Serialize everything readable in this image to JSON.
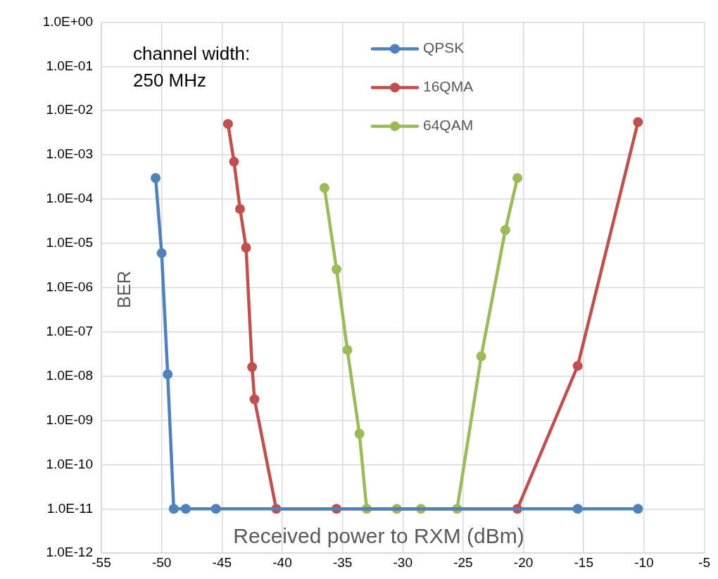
{
  "chart_data": {
    "type": "line",
    "xlabel": "Received power to RXM (dBm)",
    "ylabel": "BER",
    "annotations": [
      "channel width:",
      "250 MHz"
    ],
    "log": "y",
    "grid": true,
    "legend": "top",
    "marker": "circle",
    "line_style": "solid",
    "xlim": [
      -55,
      -5
    ],
    "xticks": [
      -55,
      -50,
      -45,
      -40,
      -35,
      -30,
      -25,
      -20,
      -15,
      -10,
      -5
    ],
    "ylim": [
      1e-12,
      1
    ],
    "yticks": [
      {
        "value": 1e-12,
        "label": "1.0E-12"
      },
      {
        "value": 1e-11,
        "label": "1.0E-11"
      },
      {
        "value": 1e-10,
        "label": "1.0E-10"
      },
      {
        "value": 1e-09,
        "label": "1.0E-09"
      },
      {
        "value": 1e-08,
        "label": "1.0E-08"
      },
      {
        "value": 1e-07,
        "label": "1.0E-07"
      },
      {
        "value": 1e-06,
        "label": "1.0E-06"
      },
      {
        "value": 1e-05,
        "label": "1.0E-05"
      },
      {
        "value": 0.0001,
        "label": "1.0E-04"
      },
      {
        "value": 0.001,
        "label": "1.0E-03"
      },
      {
        "value": 0.01,
        "label": "1.0E-02"
      },
      {
        "value": 0.1,
        "label": "1.0E-01"
      },
      {
        "value": 1,
        "label": "1.0E+00"
      }
    ],
    "series": [
      {
        "name": "QPSK",
        "color": "#4f81bd",
        "x": [
          -50.5,
          -50,
          -49.5,
          -49,
          -48,
          -45.5,
          -15.5,
          -10.5
        ],
        "values": [
          0.0003,
          6e-06,
          1.1e-08,
          1e-11,
          1e-11,
          1e-11,
          1e-11,
          1e-11
        ]
      },
      {
        "name": "16QMA",
        "color": "#c0504d",
        "x": [
          -44.5,
          -44,
          -43.5,
          -43,
          -42.5,
          -42.3,
          -40.5,
          -35.5,
          -20.5,
          -15.5,
          -10.5
        ],
        "values": [
          0.005,
          0.0007,
          6e-05,
          8e-06,
          1.6e-08,
          3e-09,
          1e-11,
          1e-11,
          1e-11,
          1.7e-08,
          0.0055
        ]
      },
      {
        "name": "64QAM",
        "color": "#9bbb59",
        "x": [
          -36.5,
          -35.5,
          -34.6,
          -33.6,
          -33,
          -30.5,
          -28.5,
          -25.5,
          -23.5,
          -21.5,
          -20.5
        ],
        "values": [
          0.00018,
          2.6e-06,
          3.9e-08,
          5e-10,
          1e-11,
          1e-11,
          1e-11,
          1e-11,
          2.8e-08,
          2e-05,
          0.0003
        ]
      }
    ]
  }
}
